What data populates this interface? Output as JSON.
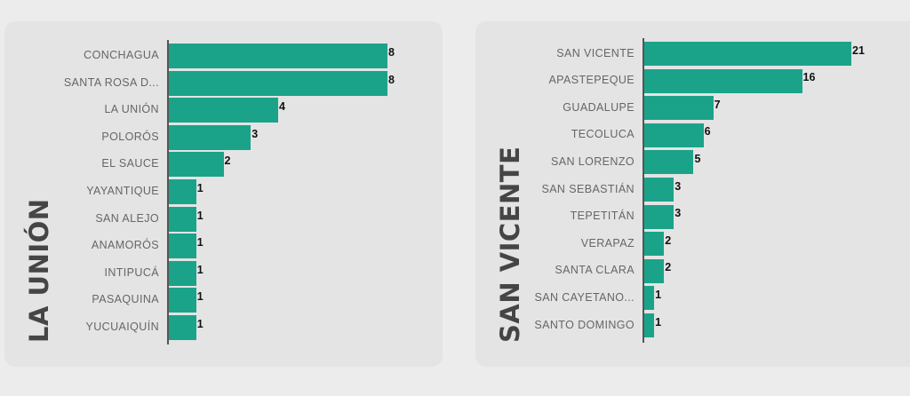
{
  "chart_data": [
    {
      "type": "bar",
      "orientation": "horizontal",
      "title": "LA UNIÓN",
      "categories": [
        "CONCHAGUA",
        "SANTA ROSA D...",
        "LA UNIÓN",
        "POLORÓS",
        "EL SAUCE",
        "YAYANTIQUE",
        "SAN ALEJO",
        "ANAMORÓS",
        "INTIPUCÁ",
        "PASAQUINA",
        "YUCUAIQUÍN"
      ],
      "values": [
        8,
        8,
        4,
        3,
        2,
        1,
        1,
        1,
        1,
        1,
        1
      ],
      "xlim": [
        0,
        8
      ],
      "grid": false,
      "bar_color": "#1ba38a"
    },
    {
      "type": "bar",
      "orientation": "horizontal",
      "title": "SAN VICENTE",
      "categories": [
        "SAN VICENTE",
        "APASTEPEQUE",
        "GUADALUPE",
        "TECOLUCA",
        "SAN LORENZO",
        "SAN SEBASTIÁN",
        "TEPETITÁN",
        "VERAPAZ",
        "SANTA CLARA",
        "SAN CAYETANO...",
        "SANTO DOMINGO"
      ],
      "values": [
        21,
        16,
        7,
        6,
        5,
        3,
        3,
        2,
        2,
        1,
        1
      ],
      "xlim": [
        0,
        21
      ],
      "grid": false,
      "bar_color": "#1ba38a"
    }
  ]
}
